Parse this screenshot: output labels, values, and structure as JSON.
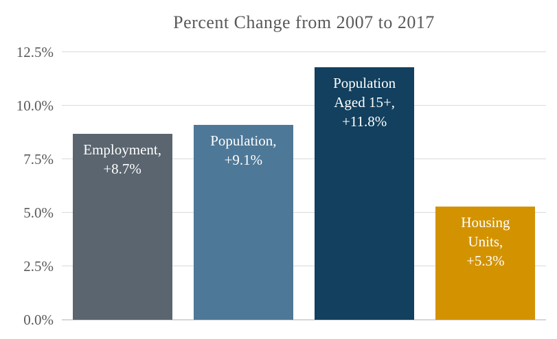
{
  "chart_data": {
    "type": "bar",
    "title": "Percent Change from 2007 to 2017",
    "categories": [
      "Employment",
      "Population",
      "Population Aged 15+",
      "Housing Units"
    ],
    "values": [
      8.7,
      9.1,
      11.8,
      5.3
    ],
    "bar_labels": [
      [
        "Employment,",
        "+8.7%"
      ],
      [
        "Population,",
        "+9.1%"
      ],
      [
        "Population",
        "Aged 15+,",
        "+11.8%"
      ],
      [
        "Housing",
        "Units,",
        "+5.3%"
      ]
    ],
    "bar_colors": [
      "#5a656f",
      "#4e7897",
      "#12405e",
      "#d39300"
    ],
    "xlabel": "",
    "ylabel": "",
    "ylim": [
      0,
      12.5
    ],
    "ytick_labels": [
      "0.0%",
      "2.5%",
      "5.0%",
      "7.5%",
      "10.0%",
      "12.5%"
    ],
    "ytick_values": [
      0,
      2.5,
      5.0,
      7.5,
      10.0,
      12.5
    ],
    "grid": true,
    "legend_position": "none",
    "colors": {
      "title_text": "#595959",
      "axis_text": "#595959",
      "gridline": "#d9d9d9",
      "baseline": "#d6d6d6",
      "bar_label_text": "#ffffff",
      "background": "#ffffff"
    }
  }
}
